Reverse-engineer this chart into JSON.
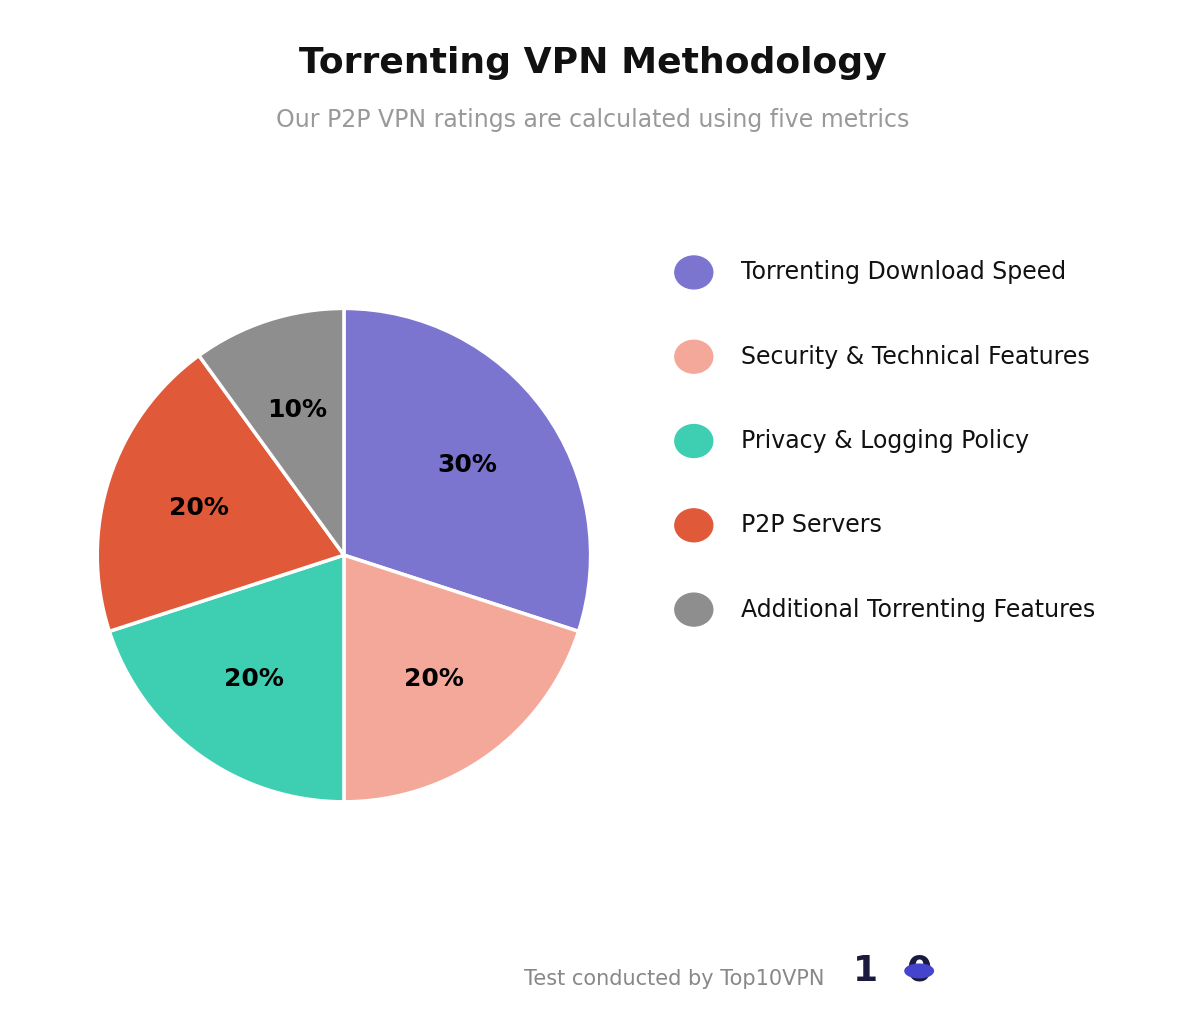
{
  "title": "Torrenting VPN Methodology",
  "subtitle": "Our P2P VPN ratings are calculated using five metrics",
  "slices": [
    30,
    20,
    20,
    20,
    10
  ],
  "labels": [
    "30%",
    "20%",
    "20%",
    "20%",
    "10%"
  ],
  "legend_labels": [
    "Torrenting Download Speed",
    "Security & Technical Features",
    "Privacy & Logging Policy",
    "P2P Servers",
    "Additional Torrenting Features"
  ],
  "colors": [
    "#7B75D0",
    "#F4A89A",
    "#3ECFB2",
    "#E05A3A",
    "#8E8E8E"
  ],
  "background_color": "#FFFFFF",
  "title_fontsize": 26,
  "subtitle_fontsize": 17,
  "label_fontsize": 18,
  "legend_fontsize": 17,
  "startangle": 90,
  "footer_text": "Test conducted by Top10VPN",
  "footer_color": "#888888",
  "footer_fontsize": 15,
  "logo_color": "#1a1a3e",
  "logo_dot_color": "#4444cc"
}
